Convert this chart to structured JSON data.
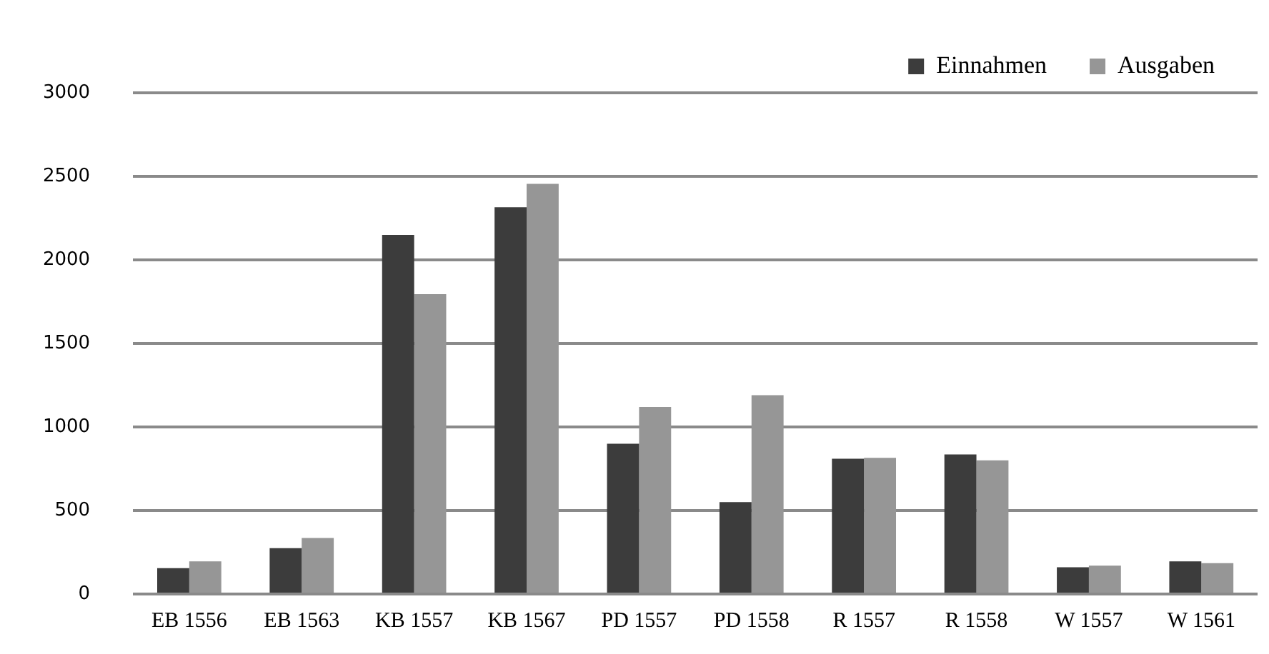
{
  "chart_data": {
    "type": "bar",
    "categories": [
      "EB 1556",
      "EB 1563",
      "KB 1557",
      "KB 1567",
      "PD 1557",
      "PD 1558",
      "R 1557",
      "R 1558",
      "W 1557",
      "W 1561"
    ],
    "series": [
      {
        "name": "Einnahmen",
        "color": "#3c3c3c",
        "values": [
          155,
          275,
          2150,
          2315,
          900,
          550,
          810,
          835,
          160,
          195
        ]
      },
      {
        "name": "Ausgaben",
        "color": "#969696",
        "values": [
          195,
          335,
          1795,
          2455,
          1120,
          1190,
          815,
          800,
          170,
          185
        ]
      }
    ],
    "ylim": [
      0,
      3000
    ],
    "yticks": [
      0,
      500,
      1000,
      1500,
      2000,
      2500,
      3000
    ],
    "grid": "y",
    "legend": "top right"
  }
}
